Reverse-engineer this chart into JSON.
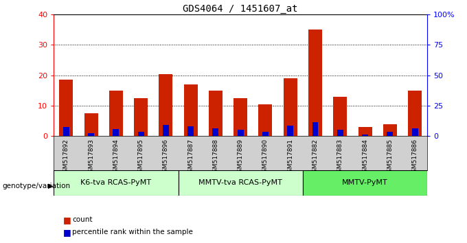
{
  "title": "GDS4064 / 1451607_at",
  "samples": [
    "GSM517892",
    "GSM517893",
    "GSM517894",
    "GSM517895",
    "GSM517896",
    "GSM517887",
    "GSM517888",
    "GSM517889",
    "GSM517890",
    "GSM517891",
    "GSM517882",
    "GSM517883",
    "GSM517884",
    "GSM517885",
    "GSM517886"
  ],
  "count_values": [
    18.5,
    7.5,
    15.0,
    12.5,
    20.5,
    17.0,
    15.0,
    12.5,
    10.5,
    19.0,
    35.0,
    13.0,
    3.0,
    4.0,
    15.0
  ],
  "percentile_values": [
    7.5,
    2.5,
    6.0,
    3.5,
    9.0,
    8.0,
    6.5,
    5.5,
    3.5,
    8.5,
    11.5,
    5.5,
    1.5,
    3.5,
    6.5
  ],
  "groups": [
    {
      "label": "K6-tva RCAS-PyMT",
      "start": 0,
      "end": 5,
      "color": "#ccffcc"
    },
    {
      "label": "MMTV-tva RCAS-PyMT",
      "start": 5,
      "end": 10,
      "color": "#ccffcc"
    },
    {
      "label": "MMTV-PyMT",
      "start": 10,
      "end": 15,
      "color": "#66ee66"
    }
  ],
  "bar_color": "#cc2200",
  "percentile_color": "#0000cc",
  "ylim_left": [
    0,
    40
  ],
  "ylim_right": [
    0,
    100
  ],
  "yticks_left": [
    0,
    10,
    20,
    30,
    40
  ],
  "yticks_right": [
    0,
    25,
    50,
    75,
    100
  ],
  "bar_width": 0.55,
  "background_color": "#ffffff",
  "plot_bg": "#ffffff",
  "legend_items": [
    {
      "label": "count",
      "color": "#cc2200"
    },
    {
      "label": "percentile rank within the sample",
      "color": "#0000cc"
    }
  ],
  "genotype_label": "genotype/variation",
  "group_label_fontsize": 8,
  "title_fontsize": 10,
  "sample_label_bg": "#d0d0d0",
  "grid_yticks": [
    10,
    20,
    30
  ]
}
